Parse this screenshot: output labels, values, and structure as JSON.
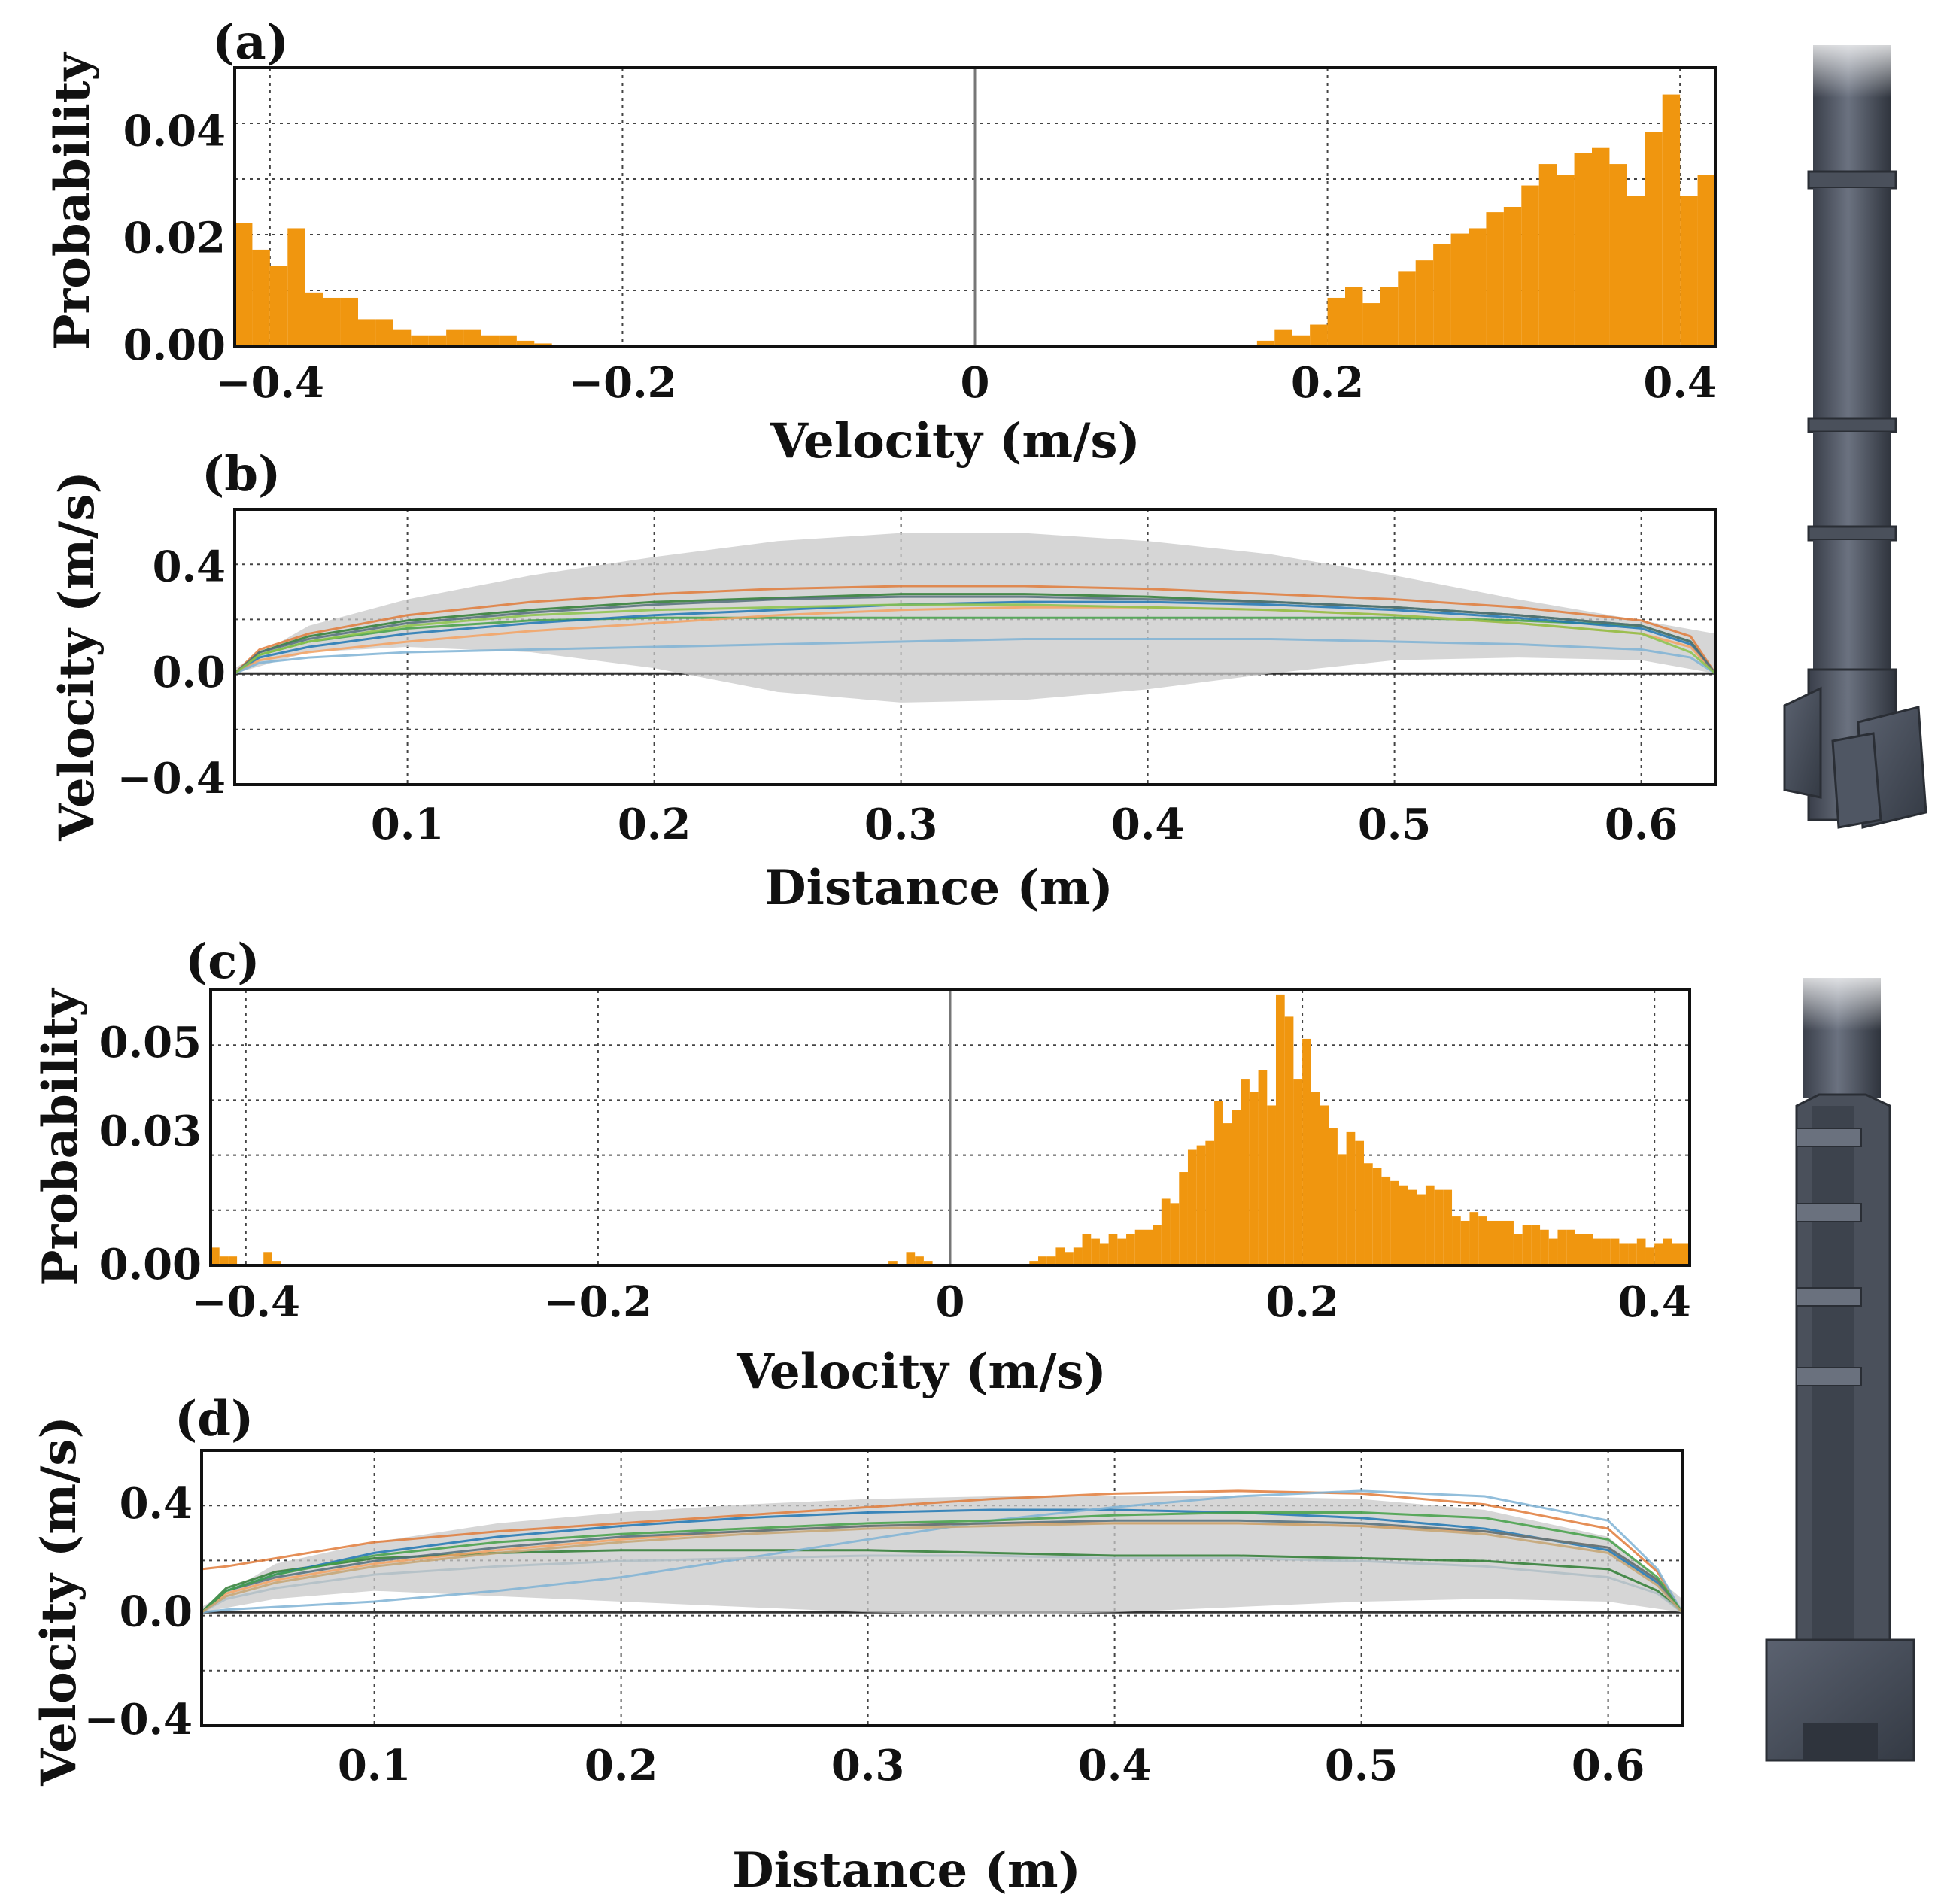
{
  "chart_data": [
    {
      "id": "a",
      "panel_label": "(a)",
      "type": "bar",
      "xlabel": "Velocity (m/s)",
      "ylabel": "Probability",
      "xlim": [
        -0.42,
        0.42
      ],
      "ylim": [
        0,
        0.052
      ],
      "xticks": [
        -0.4,
        -0.2,
        0,
        0.2,
        0.4
      ],
      "xtick_labels": [
        "−0.4",
        "−0.2",
        "0",
        "0.2",
        "0.4"
      ],
      "yticks": [
        0.0,
        0.02,
        0.04
      ],
      "ytick_labels": [
        "0.00",
        "0.02",
        "0.04"
      ],
      "grid": true,
      "color": "#f0960f",
      "bin_width": 0.01,
      "x": [
        -0.415,
        -0.405,
        -0.395,
        -0.385,
        -0.375,
        -0.365,
        -0.355,
        -0.345,
        -0.335,
        -0.325,
        -0.315,
        -0.305,
        -0.295,
        -0.285,
        -0.275,
        -0.265,
        -0.255,
        -0.245,
        0.165,
        0.175,
        0.185,
        0.195,
        0.205,
        0.215,
        0.225,
        0.235,
        0.245,
        0.255,
        0.265,
        0.275,
        0.285,
        0.295,
        0.305,
        0.315,
        0.325,
        0.335,
        0.345,
        0.355,
        0.365,
        0.375,
        0.385,
        0.395,
        0.405,
        0.415
      ],
      "values": [
        0.023,
        0.018,
        0.015,
        0.022,
        0.01,
        0.009,
        0.009,
        0.005,
        0.005,
        0.003,
        0.002,
        0.002,
        0.003,
        0.003,
        0.002,
        0.002,
        0.001,
        0.0005,
        0.001,
        0.003,
        0.002,
        0.004,
        0.009,
        0.011,
        0.008,
        0.011,
        0.014,
        0.016,
        0.019,
        0.021,
        0.022,
        0.025,
        0.026,
        0.03,
        0.034,
        0.032,
        0.036,
        0.037,
        0.034,
        0.028,
        0.04,
        0.047,
        0.028,
        0.032
      ]
    },
    {
      "id": "b",
      "panel_label": "(b)",
      "type": "line",
      "xlabel": "Distance (m)",
      "ylabel": "Velocity (m/s)",
      "xlim": [
        0.03,
        0.63
      ],
      "ylim": [
        -0.42,
        0.62
      ],
      "xticks": [
        0.1,
        0.2,
        0.3,
        0.4,
        0.5,
        0.6
      ],
      "xtick_labels": [
        "0.1",
        "0.2",
        "0.3",
        "0.4",
        "0.5",
        "0.6"
      ],
      "yticks": [
        -0.4,
        0.0,
        0.4
      ],
      "ytick_labels": [
        "−0.4",
        "0.0",
        "0.4"
      ],
      "grid": true,
      "band": {
        "x": [
          0.03,
          0.06,
          0.1,
          0.15,
          0.2,
          0.25,
          0.3,
          0.35,
          0.4,
          0.45,
          0.5,
          0.55,
          0.6,
          0.63
        ],
        "upper": [
          0.02,
          0.18,
          0.28,
          0.37,
          0.44,
          0.5,
          0.53,
          0.53,
          0.5,
          0.45,
          0.37,
          0.28,
          0.2,
          0.15
        ],
        "lower": [
          0.0,
          0.08,
          0.1,
          0.08,
          0.02,
          -0.07,
          -0.11,
          -0.1,
          -0.06,
          0.0,
          0.05,
          0.06,
          0.05,
          0.0
        ]
      },
      "series": [
        {
          "color": "#2e7d32",
          "values_x": [
            0.03,
            0.04,
            0.06,
            0.1,
            0.15,
            0.2,
            0.25,
            0.3,
            0.35,
            0.4,
            0.45,
            0.5,
            0.55,
            0.6,
            0.62,
            0.63
          ],
          "values": [
            0.0,
            0.08,
            0.14,
            0.2,
            0.24,
            0.27,
            0.285,
            0.3,
            0.3,
            0.29,
            0.27,
            0.25,
            0.22,
            0.18,
            0.12,
            0.0
          ]
        },
        {
          "color": "#43a047",
          "values_x": [
            0.03,
            0.04,
            0.06,
            0.1,
            0.15,
            0.2,
            0.25,
            0.3,
            0.35,
            0.4,
            0.45,
            0.5,
            0.55,
            0.6,
            0.62,
            0.63
          ],
          "values": [
            0.0,
            0.07,
            0.12,
            0.17,
            0.2,
            0.21,
            0.21,
            0.21,
            0.21,
            0.21,
            0.21,
            0.21,
            0.2,
            0.18,
            0.12,
            0.0
          ]
        },
        {
          "color": "#e07b39",
          "values_x": [
            0.03,
            0.04,
            0.06,
            0.1,
            0.15,
            0.2,
            0.25,
            0.3,
            0.35,
            0.4,
            0.45,
            0.5,
            0.55,
            0.6,
            0.62,
            0.63
          ],
          "values": [
            0.0,
            0.09,
            0.15,
            0.22,
            0.27,
            0.3,
            0.32,
            0.33,
            0.33,
            0.32,
            0.3,
            0.28,
            0.25,
            0.2,
            0.14,
            0.0
          ]
        },
        {
          "color": "#1f77b4",
          "values_x": [
            0.03,
            0.04,
            0.06,
            0.1,
            0.15,
            0.2,
            0.25,
            0.3,
            0.35,
            0.4,
            0.45,
            0.5,
            0.55,
            0.6,
            0.62,
            0.63
          ],
          "values": [
            0.0,
            0.06,
            0.1,
            0.15,
            0.19,
            0.22,
            0.24,
            0.26,
            0.27,
            0.27,
            0.26,
            0.24,
            0.21,
            0.17,
            0.11,
            0.0
          ]
        },
        {
          "color": "#f4a261",
          "values_x": [
            0.03,
            0.04,
            0.06,
            0.1,
            0.15,
            0.2,
            0.25,
            0.3,
            0.35,
            0.4,
            0.45,
            0.5,
            0.55,
            0.6,
            0.62,
            0.63
          ],
          "values": [
            0.0,
            0.05,
            0.08,
            0.12,
            0.16,
            0.19,
            0.22,
            0.24,
            0.25,
            0.25,
            0.24,
            0.22,
            0.19,
            0.15,
            0.1,
            0.0
          ]
        },
        {
          "color": "#7fb3d5",
          "values_x": [
            0.03,
            0.04,
            0.06,
            0.1,
            0.15,
            0.2,
            0.25,
            0.3,
            0.35,
            0.4,
            0.45,
            0.5,
            0.55,
            0.6,
            0.62,
            0.63
          ],
          "values": [
            0.0,
            0.04,
            0.06,
            0.08,
            0.09,
            0.1,
            0.11,
            0.12,
            0.13,
            0.13,
            0.13,
            0.12,
            0.11,
            0.09,
            0.06,
            0.0
          ]
        },
        {
          "color": "#546e7a",
          "values_x": [
            0.03,
            0.04,
            0.06,
            0.1,
            0.15,
            0.2,
            0.25,
            0.3,
            0.35,
            0.4,
            0.45,
            0.5,
            0.55,
            0.6,
            0.62,
            0.63
          ],
          "values": [
            0.0,
            0.08,
            0.13,
            0.19,
            0.23,
            0.26,
            0.28,
            0.29,
            0.29,
            0.28,
            0.27,
            0.25,
            0.22,
            0.18,
            0.12,
            0.0
          ]
        },
        {
          "color": "#8bc34a",
          "values_x": [
            0.03,
            0.04,
            0.06,
            0.1,
            0.15,
            0.2,
            0.25,
            0.3,
            0.35,
            0.4,
            0.45,
            0.5,
            0.55,
            0.6,
            0.62,
            0.63
          ],
          "values": [
            0.0,
            0.07,
            0.12,
            0.18,
            0.22,
            0.24,
            0.25,
            0.26,
            0.26,
            0.25,
            0.24,
            0.22,
            0.19,
            0.15,
            0.08,
            0.0
          ]
        }
      ]
    },
    {
      "id": "c",
      "panel_label": "(c)",
      "type": "bar",
      "xlabel": "Velocity (m/s)",
      "ylabel": "Probability",
      "xlim": [
        -0.42,
        0.42
      ],
      "ylim": [
        0,
        0.062
      ],
      "xticks": [
        -0.4,
        -0.2,
        0,
        0.2,
        0.4
      ],
      "xtick_labels": [
        "−0.4",
        "−0.2",
        "0",
        "0.2",
        "0.4"
      ],
      "yticks": [
        0.0,
        0.03,
        0.05
      ],
      "ytick_labels": [
        "0.00",
        "0.03",
        "0.05"
      ],
      "grid": true,
      "color": "#f0960f",
      "bin_width": 0.005,
      "x": [
        -0.4175,
        -0.4125,
        -0.4075,
        -0.3875,
        -0.3825,
        -0.0325,
        -0.0225,
        -0.0175,
        -0.0125,
        0.0475,
        0.0525,
        0.0575,
        0.0625,
        0.0675,
        0.0725,
        0.0775,
        0.0825,
        0.0875,
        0.0925,
        0.0975,
        0.1025,
        0.1075,
        0.1125,
        0.1175,
        0.1225,
        0.1275,
        0.1325,
        0.1375,
        0.1425,
        0.1475,
        0.1525,
        0.1575,
        0.1625,
        0.1675,
        0.1725,
        0.1775,
        0.1825,
        0.1875,
        0.1925,
        0.1975,
        0.2025,
        0.2075,
        0.2125,
        0.2175,
        0.2225,
        0.2275,
        0.2325,
        0.2375,
        0.2425,
        0.2475,
        0.2525,
        0.2575,
        0.2625,
        0.2675,
        0.2725,
        0.2775,
        0.2825,
        0.2875,
        0.2925,
        0.2975,
        0.3025,
        0.3075,
        0.3125,
        0.3175,
        0.3225,
        0.3275,
        0.3325,
        0.3375,
        0.3425,
        0.3475,
        0.3525,
        0.3575,
        0.3625,
        0.3675,
        0.3725,
        0.3775,
        0.3825,
        0.3875,
        0.3925,
        0.3975,
        0.4025,
        0.4075,
        0.4125,
        0.4175
      ],
      "values": [
        0.004,
        0.002,
        0.002,
        0.003,
        0.001,
        0.001,
        0.003,
        0.002,
        0.001,
        0.001,
        0.002,
        0.002,
        0.004,
        0.003,
        0.004,
        0.007,
        0.006,
        0.005,
        0.007,
        0.006,
        0.007,
        0.008,
        0.008,
        0.009,
        0.015,
        0.014,
        0.021,
        0.026,
        0.027,
        0.028,
        0.037,
        0.032,
        0.035,
        0.042,
        0.039,
        0.044,
        0.036,
        0.061,
        0.056,
        0.042,
        0.051,
        0.039,
        0.036,
        0.031,
        0.025,
        0.03,
        0.028,
        0.023,
        0.022,
        0.02,
        0.019,
        0.018,
        0.017,
        0.016,
        0.018,
        0.017,
        0.017,
        0.011,
        0.01,
        0.012,
        0.011,
        0.01,
        0.01,
        0.01,
        0.007,
        0.009,
        0.009,
        0.008,
        0.006,
        0.008,
        0.008,
        0.007,
        0.007,
        0.006,
        0.006,
        0.006,
        0.005,
        0.005,
        0.006,
        0.004,
        0.005,
        0.006,
        0.005,
        0.005
      ]
    },
    {
      "id": "d",
      "panel_label": "(d)",
      "type": "line",
      "xlabel": "Distance (m)",
      "ylabel": "Velocity (m/s)",
      "xlim": [
        0.03,
        0.63
      ],
      "ylim": [
        -0.42,
        0.6
      ],
      "xticks": [
        0.1,
        0.2,
        0.3,
        0.4,
        0.5,
        0.6
      ],
      "xtick_labels": [
        "0.1",
        "0.2",
        "0.3",
        "0.4",
        "0.5",
        "0.6"
      ],
      "yticks": [
        -0.4,
        0.0,
        0.4
      ],
      "ytick_labels": [
        "−0.4",
        "0.0",
        "0.4"
      ],
      "grid": true,
      "band": {
        "x": [
          0.03,
          0.06,
          0.1,
          0.15,
          0.2,
          0.25,
          0.3,
          0.35,
          0.4,
          0.45,
          0.5,
          0.55,
          0.6,
          0.63
        ],
        "upper": [
          0.02,
          0.18,
          0.26,
          0.33,
          0.37,
          0.4,
          0.42,
          0.43,
          0.43,
          0.43,
          0.42,
          0.38,
          0.28,
          0.05
        ],
        "lower": [
          0.0,
          0.05,
          0.08,
          0.06,
          0.04,
          0.02,
          0.0,
          -0.01,
          0.0,
          0.02,
          0.04,
          0.05,
          0.04,
          0.0
        ]
      },
      "series": [
        {
          "color": "#2e7d32",
          "values_x": [
            0.03,
            0.04,
            0.06,
            0.1,
            0.15,
            0.2,
            0.25,
            0.3,
            0.35,
            0.4,
            0.45,
            0.5,
            0.55,
            0.6,
            0.62,
            0.63
          ],
          "values": [
            0.0,
            0.09,
            0.15,
            0.2,
            0.22,
            0.23,
            0.23,
            0.23,
            0.22,
            0.21,
            0.21,
            0.2,
            0.19,
            0.16,
            0.08,
            0.0
          ]
        },
        {
          "color": "#e07b39",
          "values_x": [
            0.03,
            0.04,
            0.06,
            0.1,
            0.15,
            0.2,
            0.25,
            0.3,
            0.35,
            0.4,
            0.45,
            0.5,
            0.55,
            0.6,
            0.62,
            0.63
          ],
          "values": [
            0.16,
            0.17,
            0.2,
            0.26,
            0.3,
            0.33,
            0.36,
            0.39,
            0.42,
            0.44,
            0.45,
            0.44,
            0.4,
            0.31,
            0.15,
            0.0
          ]
        },
        {
          "color": "#1f77b4",
          "values_x": [
            0.03,
            0.04,
            0.06,
            0.1,
            0.15,
            0.2,
            0.25,
            0.3,
            0.35,
            0.4,
            0.45,
            0.5,
            0.55,
            0.6,
            0.62,
            0.63
          ],
          "values": [
            0.0,
            0.08,
            0.14,
            0.22,
            0.28,
            0.32,
            0.35,
            0.37,
            0.38,
            0.38,
            0.37,
            0.35,
            0.31,
            0.23,
            0.11,
            0.0
          ]
        },
        {
          "color": "#7fb3d5",
          "values_x": [
            0.03,
            0.04,
            0.06,
            0.1,
            0.15,
            0.2,
            0.25,
            0.3,
            0.35,
            0.4,
            0.45,
            0.5,
            0.55,
            0.6,
            0.62,
            0.63
          ],
          "values": [
            0.0,
            0.01,
            0.02,
            0.04,
            0.08,
            0.13,
            0.2,
            0.27,
            0.34,
            0.39,
            0.43,
            0.45,
            0.43,
            0.34,
            0.16,
            0.0
          ]
        },
        {
          "color": "#f4a261",
          "values_x": [
            0.03,
            0.04,
            0.06,
            0.1,
            0.15,
            0.2,
            0.25,
            0.3,
            0.35,
            0.4,
            0.45,
            0.5,
            0.55,
            0.6,
            0.62,
            0.63
          ],
          "values": [
            0.0,
            0.07,
            0.12,
            0.18,
            0.23,
            0.27,
            0.3,
            0.32,
            0.33,
            0.33,
            0.33,
            0.32,
            0.3,
            0.24,
            0.12,
            0.0
          ]
        },
        {
          "color": "#546e7a",
          "values_x": [
            0.03,
            0.04,
            0.06,
            0.1,
            0.15,
            0.2,
            0.25,
            0.3,
            0.35,
            0.4,
            0.45,
            0.5,
            0.55,
            0.6,
            0.62,
            0.63
          ],
          "values": [
            0.0,
            0.08,
            0.13,
            0.19,
            0.24,
            0.28,
            0.3,
            0.32,
            0.33,
            0.34,
            0.34,
            0.33,
            0.3,
            0.24,
            0.12,
            0.0
          ]
        },
        {
          "color": "#b0bec5",
          "values_x": [
            0.03,
            0.04,
            0.06,
            0.1,
            0.15,
            0.2,
            0.25,
            0.3,
            0.35,
            0.4,
            0.45,
            0.5,
            0.55,
            0.6,
            0.62,
            0.63
          ],
          "values": [
            0.0,
            0.05,
            0.09,
            0.14,
            0.17,
            0.19,
            0.2,
            0.21,
            0.21,
            0.2,
            0.2,
            0.19,
            0.17,
            0.13,
            0.07,
            0.0
          ]
        },
        {
          "color": "#43a047",
          "values_x": [
            0.03,
            0.04,
            0.06,
            0.1,
            0.15,
            0.2,
            0.25,
            0.3,
            0.35,
            0.4,
            0.45,
            0.5,
            0.55,
            0.6,
            0.62,
            0.63
          ],
          "values": [
            0.0,
            0.08,
            0.14,
            0.21,
            0.26,
            0.29,
            0.31,
            0.33,
            0.34,
            0.36,
            0.37,
            0.37,
            0.35,
            0.27,
            0.13,
            0.0
          ]
        },
        {
          "color": "#c5a572",
          "values_x": [
            0.03,
            0.04,
            0.06,
            0.1,
            0.15,
            0.2,
            0.25,
            0.3,
            0.35,
            0.4,
            0.45,
            0.5,
            0.55,
            0.6,
            0.62,
            0.63
          ],
          "values": [
            0.0,
            0.06,
            0.11,
            0.17,
            0.22,
            0.26,
            0.29,
            0.31,
            0.32,
            0.33,
            0.33,
            0.32,
            0.29,
            0.22,
            0.1,
            0.0
          ]
        }
      ]
    }
  ]
}
